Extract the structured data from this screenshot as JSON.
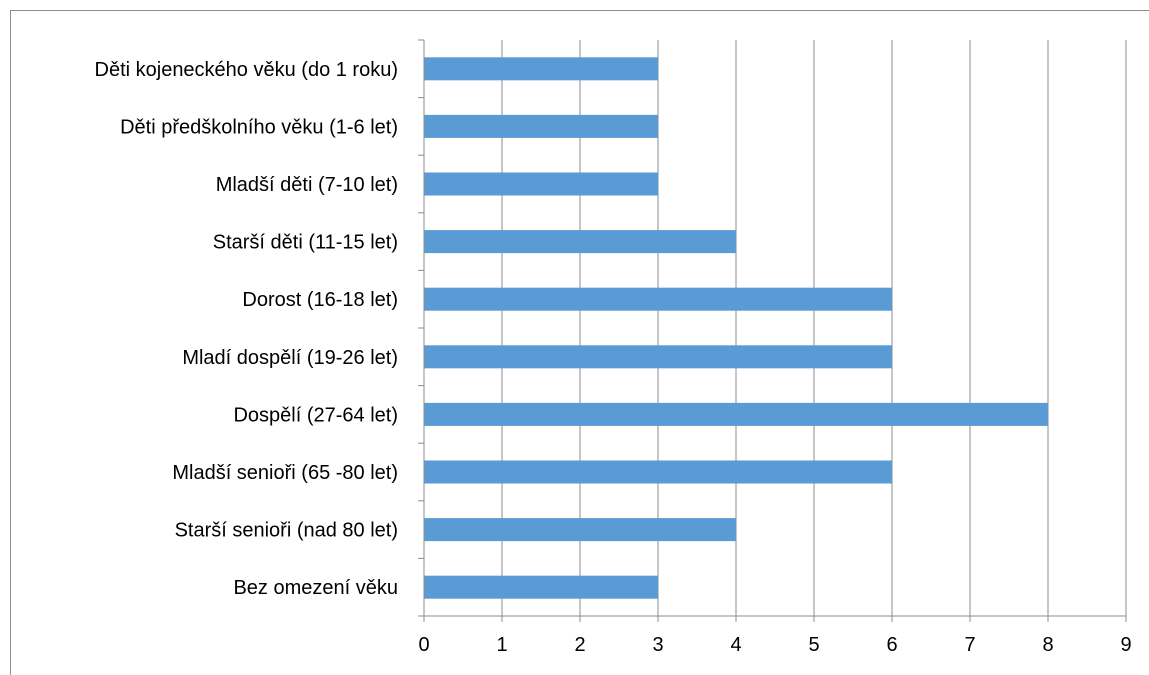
{
  "chart_data": {
    "type": "bar",
    "orientation": "horizontal",
    "categories": [
      "Děti kojeneckého věku (do 1 roku)",
      "Děti předškolního věku (1-6 let)",
      "Mladší děti (7-10 let)",
      "Starší děti (11-15 let)",
      "Dorost (16-18 let)",
      "Mladí dospělí (19-26 let)",
      "Dospělí (27-64 let)",
      "Mladší senioři (65 -80 let)",
      "Starší senioři (nad 80 let)",
      "Bez omezení věku"
    ],
    "values": [
      3,
      3,
      3,
      4,
      6,
      6,
      8,
      6,
      4,
      3
    ],
    "xlim": [
      0,
      9
    ],
    "xticks": [
      "0",
      "1",
      "2",
      "3",
      "4",
      "5",
      "6",
      "7",
      "8",
      "9"
    ],
    "grid": "vertical",
    "legend": "none",
    "bar_color": "#5b9bd5"
  }
}
